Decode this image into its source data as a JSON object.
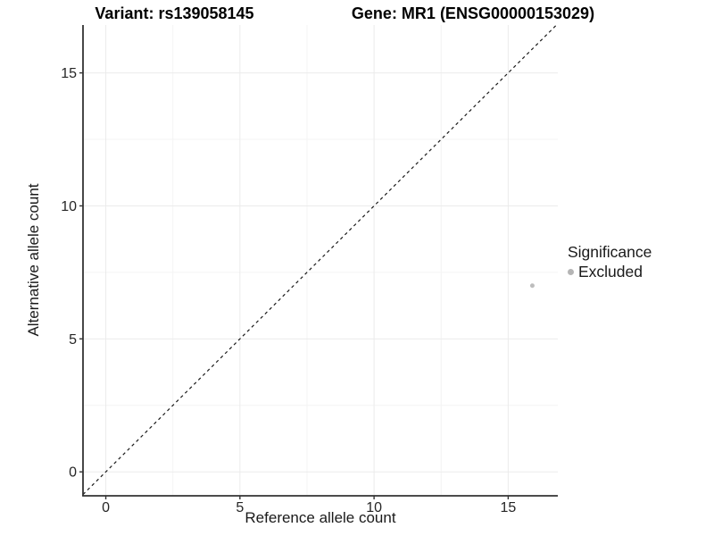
{
  "chart_data": {
    "type": "scatter",
    "titles": {
      "left": "Variant: rs139058145",
      "right": "Gene: MR1 (ENSG00000153029)"
    },
    "xlabel": "Reference allele count",
    "ylabel": "Alternative allele count",
    "xlim": [
      -0.85,
      16.85
    ],
    "ylim": [
      -0.9,
      16.8
    ],
    "xticks": [
      0,
      5,
      10,
      15
    ],
    "yticks": [
      0,
      5,
      10,
      15
    ],
    "xticks_minor": [
      2.5,
      7.5,
      12.5
    ],
    "yticks_minor": [
      2.5,
      7.5,
      12.5
    ],
    "grid": true,
    "identity_line": {
      "style": "dashed",
      "intercept": 0,
      "slope": 1
    },
    "series": [
      {
        "name": "Excluded",
        "color": "#bdbdbd",
        "point_radius": 2.5,
        "points": [
          {
            "x": 15.9,
            "y": 7.0
          }
        ]
      }
    ],
    "legend": {
      "title": "Significance",
      "position": "right",
      "entries": [
        {
          "label": "Excluded",
          "color": "#b5b5b5",
          "marker": "circle"
        }
      ]
    },
    "colors": {
      "grid_major": "#ebebeb",
      "grid_minor": "#f4f4f4",
      "axis_line": "#333333",
      "tick_text": "#262626",
      "identity_line": "#1a1a1a",
      "background": "#ffffff"
    }
  }
}
